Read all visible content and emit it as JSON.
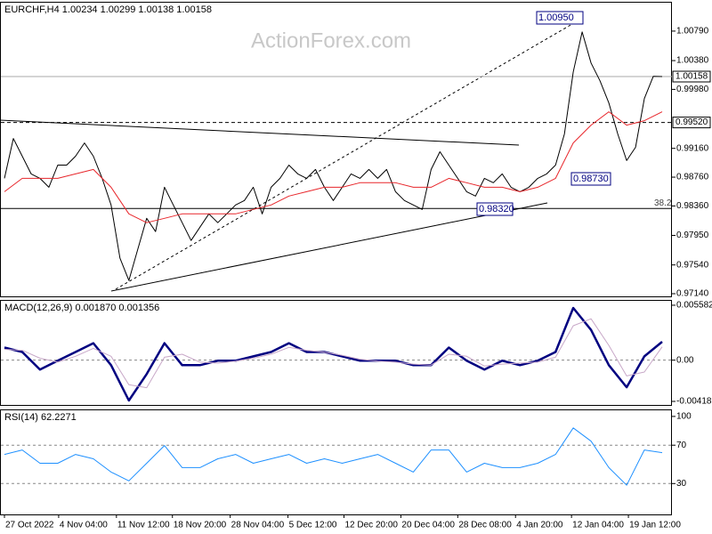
{
  "watermark": "ActionForex.com",
  "chart_data": [
    {
      "type": "line",
      "title": "EURCHF,H4 1.00234 1.00299 1.00138 1.00158",
      "xlim": [
        -0.4,
        75.1
      ],
      "ylim": [
        0.97103,
        1.01185
      ],
      "grid": false,
      "yticks": [
        {
          "value": 1.0079,
          "label": "1.00790"
        },
        {
          "value": 1.0038,
          "label": "1.00380"
        },
        {
          "value": 0.9998,
          "label": "0.99980"
        },
        {
          "value": 0.9916,
          "label": "0.99160"
        },
        {
          "value": 0.9876,
          "label": "0.98760"
        },
        {
          "value": 0.9836,
          "label": "0.98360"
        },
        {
          "value": 0.9795,
          "label": "0.97950"
        },
        {
          "value": 0.9754,
          "label": "0.97540"
        },
        {
          "value": 0.9714,
          "label": "0.97140"
        }
      ],
      "levels": [
        {
          "value": 1.00158,
          "style": "current"
        },
        {
          "value": 0.9952,
          "label": "0.99520",
          "style": "dashed"
        },
        {
          "value": 0.98324,
          "label": "38.2",
          "style": "fibo"
        }
      ],
      "annotations": [
        "1.00950",
        "0.98730",
        "0.98320"
      ],
      "series": [
        {
          "color": "#000000",
          "x": [
            0,
            1,
            2,
            3,
            4,
            5,
            6,
            7,
            8,
            9,
            10,
            11,
            12,
            13,
            14,
            15,
            16,
            17,
            18,
            19,
            20,
            21,
            22,
            23,
            24,
            25,
            26,
            27,
            28,
            29,
            30,
            31,
            32,
            33,
            34,
            35,
            36,
            37,
            38,
            39,
            40,
            41,
            42,
            43,
            44,
            45,
            46,
            47,
            48,
            49,
            50,
            51,
            52,
            53,
            54,
            55,
            56,
            57,
            58,
            59,
            60,
            61,
            62,
            63,
            64,
            65,
            66,
            67,
            68,
            69,
            70,
            71,
            72,
            73,
            74
          ],
          "values": [
            0.98743,
            0.99298,
            0.99051,
            0.98805,
            0.98743,
            0.9862,
            0.98928,
            0.98928,
            0.99051,
            0.99236,
            0.99051,
            0.98743,
            0.98373,
            0.97634,
            0.97325,
            0.97757,
            0.98188,
            0.98003,
            0.9862,
            0.98373,
            0.98127,
            0.9788,
            0.98065,
            0.9825,
            0.98127,
            0.9825,
            0.98373,
            0.98435,
            0.9862,
            0.9825,
            0.9862,
            0.98743,
            0.98928,
            0.98805,
            0.98743,
            0.98867,
            0.9862,
            0.98435,
            0.9862,
            0.98805,
            0.98743,
            0.98867,
            0.98743,
            0.98867,
            0.98558,
            0.98435,
            0.98373,
            0.98312,
            0.98867,
            0.99113,
            0.98928,
            0.98743,
            0.98558,
            0.98497,
            0.98743,
            0.98682,
            0.98805,
            0.9862,
            0.98558,
            0.9862,
            0.98743,
            0.98805,
            0.98928,
            0.9936,
            1.00223,
            1.00778,
            1.00346,
            1.001,
            0.99791,
            0.9936,
            0.9899,
            0.99175,
            0.99853,
            1.00161,
            1.00158
          ]
        },
        {
          "color": "#e8262b",
          "x": [
            0,
            2,
            4,
            6,
            8,
            10,
            12,
            14,
            16,
            18,
            20,
            22,
            24,
            26,
            28,
            30,
            32,
            34,
            36,
            38,
            40,
            42,
            44,
            46,
            48,
            50,
            52,
            54,
            56,
            58,
            60,
            62,
            64,
            66,
            68,
            70,
            72,
            74
          ],
          "values": [
            0.98558,
            0.98743,
            0.98743,
            0.98743,
            0.98805,
            0.98867,
            0.9862,
            0.9825,
            0.98127,
            0.98188,
            0.9825,
            0.9825,
            0.9825,
            0.9825,
            0.98312,
            0.98373,
            0.98497,
            0.98558,
            0.9862,
            0.9862,
            0.98682,
            0.98682,
            0.98682,
            0.9862,
            0.9862,
            0.98743,
            0.98682,
            0.9862,
            0.9862,
            0.98558,
            0.9862,
            0.98743,
            0.99236,
            0.99483,
            0.99668,
            0.99483,
            0.99545,
            0.99668
          ]
        }
      ]
    },
    {
      "type": "line",
      "title": "MACD(12,26,9) 0.001870 0.001356",
      "ylim": [
        -0.00455,
        0.00603
      ],
      "grid": "dashed",
      "yticks": [
        0.005582,
        {
          "value": 0,
          "label": "0.00"
        },
        -0.004188
      ],
      "series": [
        {
          "color": "#000080",
          "width": 2.5,
          "x": [
            0,
            2,
            4,
            6,
            8,
            10,
            12,
            14,
            16,
            18,
            20,
            22,
            24,
            26,
            28,
            30,
            32,
            34,
            36,
            38,
            40,
            42,
            44,
            46,
            48,
            50,
            52,
            54,
            56,
            58,
            60,
            62,
            64,
            66,
            68,
            70,
            72,
            74
          ],
          "values": [
            0.00128,
            0.00083,
            -0.00096,
            -6e-05,
            0.00083,
            0.00173,
            -0.00051,
            -0.0041,
            -0.00141,
            0.00173,
            -0.00051,
            -0.00051,
            -6e-05,
            -6e-05,
            0.00039,
            0.00083,
            0.00173,
            0.00083,
            0.00083,
            0.00039,
            -6e-05,
            -6e-05,
            -6e-05,
            -0.00051,
            -0.00051,
            0.00128,
            -6e-05,
            -0.00096,
            -6e-05,
            -0.00051,
            -6e-05,
            0.00083,
            0.00531,
            0.00307,
            -0.00051,
            -0.00275,
            0.00039,
            0.00187
          ]
        },
        {
          "color": "#c8a8c8",
          "width": 1,
          "x": [
            0,
            2,
            4,
            6,
            8,
            10,
            12,
            14,
            16,
            18,
            20,
            22,
            24,
            26,
            28,
            30,
            32,
            34,
            36,
            38,
            40,
            42,
            44,
            46,
            48,
            50,
            52,
            54,
            56,
            58,
            60,
            62,
            64,
            66,
            68,
            70,
            72,
            74
          ],
          "values": [
            0.0011,
            0.001,
            0.0002,
            -0.0002,
            0.0004,
            0.0012,
            0.0004,
            -0.0025,
            -0.0028,
            0.0003,
            0.0006,
            -0.0002,
            -0.0003,
            -0.0001,
            0.0002,
            0.0006,
            0.0013,
            0.001,
            0.0008,
            0.0005,
            0.0001,
            -0.0001,
            -0.0002,
            -0.0004,
            -0.0005,
            0.0006,
            0.0004,
            -0.0006,
            -0.0004,
            -0.0003,
            -0.0002,
            0.0003,
            0.0035,
            0.0042,
            0.0015,
            -0.0016,
            -0.0012,
            0.001356
          ]
        }
      ]
    },
    {
      "type": "line",
      "title": "RSI(14) 62.2271",
      "ylim": [
        -2.2,
        106.4
      ],
      "grid": "dashed",
      "yticks": [
        100,
        70,
        30
      ],
      "xticks": [
        {
          "value": 0,
          "label": "27 Oct 2022"
        },
        {
          "value": 6.1,
          "label": "4 Nov 04:00"
        },
        {
          "value": 12.6,
          "label": "11 Nov 12:00"
        },
        {
          "value": 18.9,
          "label": "18 Nov 20:00"
        },
        {
          "value": 25.4,
          "label": "28 Nov 04:00"
        },
        {
          "value": 31.9,
          "label": "5 Dec 12:00"
        },
        {
          "value": 38.2,
          "label": "12 Dec 20:00"
        },
        {
          "value": 44.6,
          "label": "20 Dec 04:00"
        },
        {
          "value": 51,
          "label": "28 Dec 08:00"
        },
        {
          "value": 57.5,
          "label": "4 Jan 20:00"
        },
        {
          "value": 63.8,
          "label": "12 Jan 04:00"
        },
        {
          "value": 70.2,
          "label": "19 Jan 12:00"
        }
      ],
      "series": [
        {
          "color": "#1e90ff",
          "width": 1,
          "x": [
            0,
            2,
            4,
            6,
            8,
            10,
            12,
            14,
            16,
            18,
            20,
            22,
            24,
            26,
            28,
            30,
            32,
            34,
            36,
            38,
            40,
            42,
            44,
            46,
            48,
            50,
            52,
            54,
            56,
            58,
            60,
            62,
            64,
            66,
            68,
            70,
            72,
            74
          ],
          "values": [
            60.4,
            65,
            51.2,
            51.2,
            60.4,
            55.8,
            42,
            32.8,
            51.2,
            69.6,
            46.6,
            46.6,
            55.8,
            60.4,
            51.2,
            55.8,
            60.4,
            51.2,
            55.8,
            51.2,
            55.8,
            60.4,
            51.2,
            42,
            65,
            65,
            42,
            51.2,
            46.6,
            46.6,
            51.2,
            60.4,
            88,
            74.2,
            46.6,
            28.2,
            65,
            62.2271
          ]
        }
      ]
    }
  ]
}
